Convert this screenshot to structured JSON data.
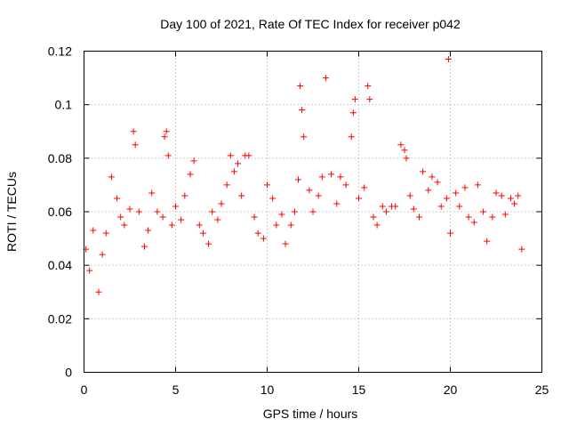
{
  "chart_data": {
    "type": "scatter",
    "title": "Day 100 of 2021, Rate Of TEC Index for receiver p042",
    "xlabel": "GPS time / hours",
    "ylabel": "ROTI / TECUs",
    "xlim": [
      0,
      25
    ],
    "ylim": [
      0,
      0.12
    ],
    "x_ticks": [
      0,
      5,
      10,
      15,
      20,
      25
    ],
    "x_tick_labels": [
      "0",
      "5",
      "10",
      "15",
      "20",
      "25"
    ],
    "y_ticks": [
      0,
      0.02,
      0.04,
      0.06,
      0.08,
      0.1,
      0.12
    ],
    "y_tick_labels": [
      "0",
      "0.02",
      "0.04",
      "0.06",
      "0.08",
      "0.1",
      "0.12"
    ],
    "grid": true,
    "marker": "plus",
    "series_color": "#ff0000",
    "series": [
      {
        "name": "ROTI",
        "x": [
          0.1,
          0.3,
          0.5,
          0.8,
          1.0,
          1.2,
          1.5,
          1.8,
          2.0,
          2.2,
          2.5,
          2.7,
          2.8,
          3.0,
          3.3,
          3.5,
          3.7,
          4.0,
          4.3,
          4.4,
          4.5,
          4.6,
          4.8,
          5.0,
          5.3,
          5.5,
          5.8,
          6.0,
          6.3,
          6.5,
          6.8,
          7.0,
          7.3,
          7.5,
          7.8,
          8.0,
          8.2,
          8.4,
          8.6,
          8.8,
          9.0,
          9.3,
          9.5,
          9.8,
          10.0,
          10.3,
          10.5,
          10.8,
          11.0,
          11.3,
          11.5,
          11.7,
          11.8,
          11.9,
          12.0,
          12.3,
          12.5,
          12.8,
          13.0,
          13.2,
          13.5,
          13.8,
          14.0,
          14.3,
          14.6,
          14.7,
          14.8,
          15.0,
          15.3,
          15.5,
          15.6,
          15.8,
          16.0,
          16.3,
          16.5,
          16.8,
          17.0,
          17.3,
          17.5,
          17.6,
          17.8,
          18.0,
          18.3,
          18.5,
          18.8,
          19.0,
          19.3,
          19.5,
          19.8,
          19.9,
          20.0,
          20.3,
          20.5,
          20.8,
          21.0,
          21.3,
          21.5,
          21.8,
          22.0,
          22.3,
          22.5,
          22.8,
          23.0,
          23.3,
          23.5,
          23.7,
          23.9
        ],
        "y": [
          0.046,
          0.038,
          0.053,
          0.03,
          0.044,
          0.052,
          0.073,
          0.065,
          0.058,
          0.055,
          0.061,
          0.09,
          0.085,
          0.06,
          0.047,
          0.053,
          0.067,
          0.06,
          0.058,
          0.088,
          0.09,
          0.081,
          0.055,
          0.062,
          0.057,
          0.066,
          0.074,
          0.079,
          0.055,
          0.052,
          0.048,
          0.06,
          0.057,
          0.063,
          0.07,
          0.081,
          0.075,
          0.078,
          0.066,
          0.081,
          0.081,
          0.058,
          0.052,
          0.05,
          0.07,
          0.065,
          0.055,
          0.059,
          0.048,
          0.055,
          0.06,
          0.072,
          0.107,
          0.098,
          0.088,
          0.068,
          0.06,
          0.066,
          0.073,
          0.11,
          0.074,
          0.063,
          0.073,
          0.07,
          0.088,
          0.097,
          0.102,
          0.065,
          0.069,
          0.107,
          0.102,
          0.058,
          0.055,
          0.062,
          0.06,
          0.062,
          0.062,
          0.085,
          0.083,
          0.08,
          0.066,
          0.061,
          0.058,
          0.075,
          0.068,
          0.073,
          0.071,
          0.062,
          0.065,
          0.117,
          0.052,
          0.067,
          0.062,
          0.069,
          0.058,
          0.056,
          0.07,
          0.06,
          0.049,
          0.058,
          0.067,
          0.066,
          0.059,
          0.065,
          0.063,
          0.066,
          0.046
        ]
      }
    ]
  }
}
